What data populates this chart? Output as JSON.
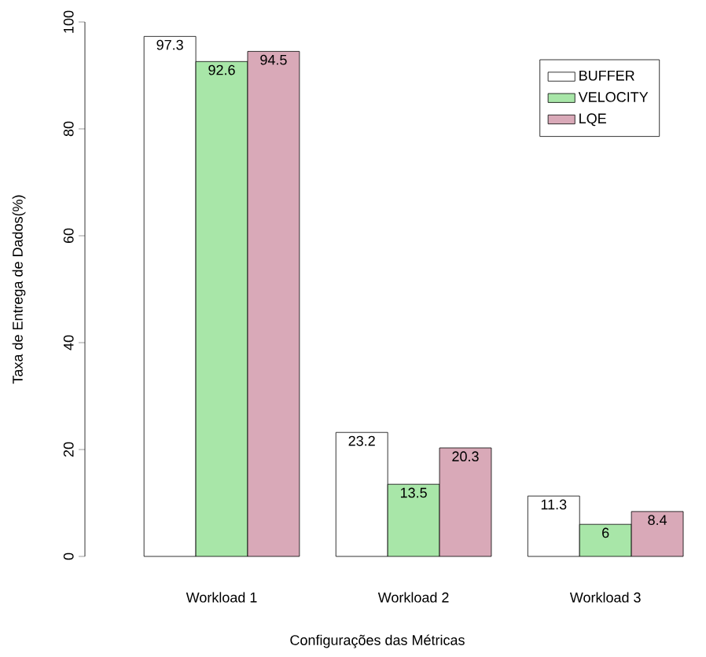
{
  "chart_data": {
    "type": "bar",
    "xlabel": "Configurações das Métricas",
    "ylabel": "Taxa de Entrega de Dados(%)",
    "categories": [
      "Workload 1",
      "Workload 2",
      "Workload 3"
    ],
    "series": [
      {
        "name": "BUFFER",
        "color": "#ffffff",
        "values": [
          97.3,
          23.2,
          11.3
        ]
      },
      {
        "name": "VELOCITY",
        "color": "#a8e6a8",
        "values": [
          92.6,
          13.5,
          6
        ]
      },
      {
        "name": "LQE",
        "color": "#d9a9b8",
        "values": [
          94.5,
          20.3,
          8.4
        ]
      }
    ],
    "ylim": [
      0,
      100
    ],
    "yticks": [
      0,
      20,
      40,
      60,
      80,
      100
    ],
    "data_labels": true,
    "legend": "top right",
    "grid": false
  }
}
